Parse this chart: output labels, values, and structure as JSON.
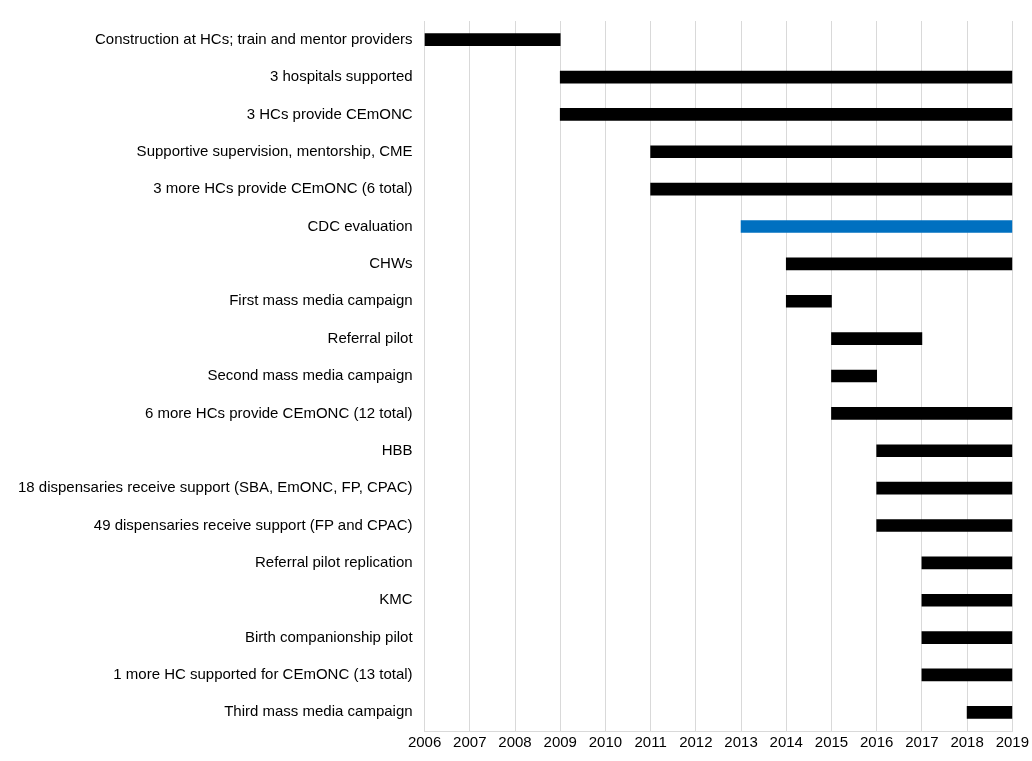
{
  "chart_data": {
    "type": "bar",
    "orientation": "horizontal",
    "categories": [
      "Construction at HCs; train and mentor providers",
      "3 hospitals supported",
      "3 HCs provide CEmONC",
      "Supportive supervision, mentorship, CME",
      "3 more HCs provide CEmONC (6 total)",
      "CDC evaluation",
      "CHWs",
      "First mass media campaign",
      "Referral pilot",
      "Second mass media campaign",
      "6 more HCs provide CEmONC (12 total)",
      "HBB",
      "18 dispensaries receive support (SBA, EmONC, FP, CPAC)",
      "49 dispensaries receive support (FP and CPAC)",
      "Referral pilot replication",
      "KMC",
      "Birth companionship pilot",
      "1 more HC supported for CEmONC (13 total)",
      "Third mass media campaign"
    ],
    "base": [
      2006,
      2009,
      2009,
      2011,
      2011,
      2013,
      2014,
      2014,
      2015,
      2015,
      2015,
      2016,
      2016,
      2016,
      2017,
      2017,
      2017,
      2017,
      2018
    ],
    "values": [
      3,
      10,
      10,
      8,
      8,
      6,
      5,
      1,
      2,
      1,
      4,
      3,
      3,
      3,
      2,
      2,
      2,
      2,
      1
    ],
    "colors": [
      "#000000",
      "#000000",
      "#000000",
      "#000000",
      "#000000",
      "#0070c0",
      "#000000",
      "#000000",
      "#000000",
      "#000000",
      "#000000",
      "#000000",
      "#000000",
      "#000000",
      "#000000",
      "#000000",
      "#000000",
      "#000000",
      "#000000"
    ],
    "xlim": [
      2006,
      2019
    ],
    "xticks": [
      2006,
      2007,
      2008,
      2009,
      2010,
      2011,
      2012,
      2013,
      2014,
      2015,
      2016,
      2017,
      2018,
      2019
    ],
    "grid": "x",
    "legend": false
  }
}
